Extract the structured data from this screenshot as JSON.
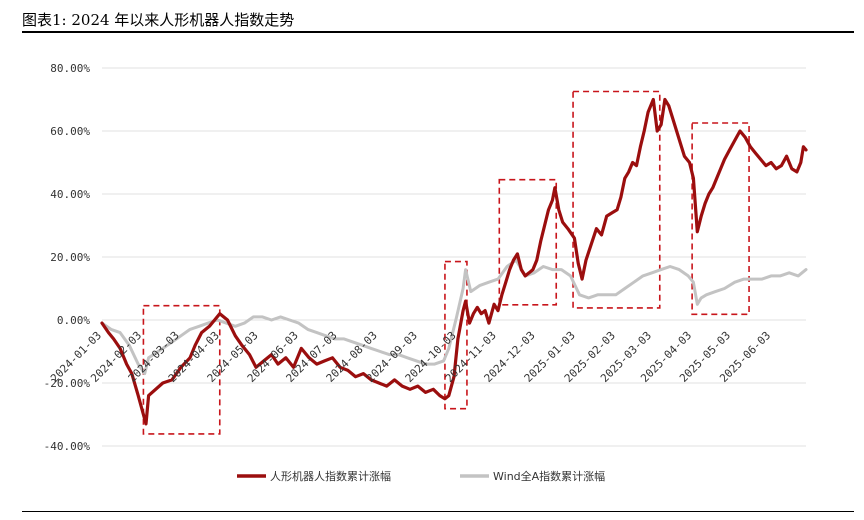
{
  "title": "图表1: 2024 年以来人形机器人指数走势",
  "colors": {
    "series1": "#9b0e0e",
    "series2": "#c3c3c3",
    "highlight_box": "#c8151b",
    "grid": "#e2e2e2"
  },
  "chart_data": {
    "type": "line",
    "xlabel": "",
    "ylabel": "",
    "ylim": [
      -40,
      80
    ],
    "grid": true,
    "legend_position": "bottom-center",
    "y_ticks": [
      80,
      60,
      40,
      20,
      0,
      -20,
      -40
    ],
    "y_tick_labels": [
      "80.00%",
      "60.00%",
      "40.00%",
      "20.00%",
      "0.00%",
      "-20.00%",
      "-40.00%"
    ],
    "x_ticks": [
      "2024-01-03",
      "2024-02-03",
      "2024-03-03",
      "2024-04-03",
      "2024-05-03",
      "2024-06-03",
      "2024-07-03",
      "2024-08-03",
      "2024-09-03",
      "2024-10-03",
      "2024-11-03",
      "2024-12-03",
      "2025-01-03",
      "2025-02-03",
      "2025-03-03",
      "2025-04-03",
      "2025-05-03",
      "2025-06-03"
    ],
    "series": [
      {
        "name": "人形机器人指数累计涨幅",
        "points": [
          [
            "2024-01-03",
            -1
          ],
          [
            "2024-01-08",
            -4
          ],
          [
            "2024-01-12",
            -6
          ],
          [
            "2024-01-17",
            -9
          ],
          [
            "2024-01-22",
            -14
          ],
          [
            "2024-01-26",
            -17
          ],
          [
            "2024-01-31",
            -24
          ],
          [
            "2024-02-04",
            -30
          ],
          [
            "2024-02-06",
            -33
          ],
          [
            "2024-02-08",
            -24
          ],
          [
            "2024-02-19",
            -20
          ],
          [
            "2024-02-26",
            -19
          ],
          [
            "2024-03-04",
            -15
          ],
          [
            "2024-03-11",
            -12
          ],
          [
            "2024-03-15",
            -8
          ],
          [
            "2024-03-20",
            -4
          ],
          [
            "2024-03-26",
            -2
          ],
          [
            "2024-03-30",
            0
          ],
          [
            "2024-04-03",
            2
          ],
          [
            "2024-04-09",
            0
          ],
          [
            "2024-04-15",
            -5
          ],
          [
            "2024-04-20",
            -8
          ],
          [
            "2024-04-26",
            -11
          ],
          [
            "2024-05-01",
            -15
          ],
          [
            "2024-05-07",
            -13
          ],
          [
            "2024-05-13",
            -11
          ],
          [
            "2024-05-18",
            -14
          ],
          [
            "2024-05-24",
            -12
          ],
          [
            "2024-05-30",
            -15
          ],
          [
            "2024-06-05",
            -9
          ],
          [
            "2024-06-11",
            -12
          ],
          [
            "2024-06-17",
            -14
          ],
          [
            "2024-06-23",
            -13
          ],
          [
            "2024-06-29",
            -12
          ],
          [
            "2024-07-05",
            -15
          ],
          [
            "2024-07-11",
            -16
          ],
          [
            "2024-07-17",
            -18
          ],
          [
            "2024-07-23",
            -17
          ],
          [
            "2024-07-29",
            -19
          ],
          [
            "2024-08-04",
            -20
          ],
          [
            "2024-08-10",
            -21
          ],
          [
            "2024-08-16",
            -19
          ],
          [
            "2024-08-22",
            -21
          ],
          [
            "2024-08-28",
            -22
          ],
          [
            "2024-09-03",
            -21
          ],
          [
            "2024-09-09",
            -23
          ],
          [
            "2024-09-15",
            -22
          ],
          [
            "2024-09-20",
            -24
          ],
          [
            "2024-09-24",
            -25
          ],
          [
            "2024-09-27",
            -24
          ],
          [
            "2024-10-01",
            -18
          ],
          [
            "2024-10-04",
            -6
          ],
          [
            "2024-10-08",
            3
          ],
          [
            "2024-10-10",
            6
          ],
          [
            "2024-10-13",
            -1
          ],
          [
            "2024-10-16",
            2
          ],
          [
            "2024-10-19",
            4
          ],
          [
            "2024-10-22",
            2
          ],
          [
            "2024-10-25",
            3
          ],
          [
            "2024-10-28",
            -1
          ],
          [
            "2024-11-01",
            5
          ],
          [
            "2024-11-04",
            3
          ],
          [
            "2024-11-07",
            8
          ],
          [
            "2024-11-10",
            12
          ],
          [
            "2024-11-13",
            16
          ],
          [
            "2024-11-16",
            19
          ],
          [
            "2024-11-19",
            21
          ],
          [
            "2024-11-22",
            16
          ],
          [
            "2024-11-25",
            14
          ],
          [
            "2024-11-28",
            15
          ],
          [
            "2024-12-01",
            16
          ],
          [
            "2024-12-04",
            19
          ],
          [
            "2024-12-07",
            25
          ],
          [
            "2024-12-10",
            30
          ],
          [
            "2024-12-13",
            35
          ],
          [
            "2024-12-16",
            38
          ],
          [
            "2024-12-18",
            42
          ],
          [
            "2024-12-21",
            35
          ],
          [
            "2024-12-24",
            31
          ],
          [
            "2024-12-28",
            29
          ],
          [
            "2025-01-02",
            26
          ],
          [
            "2025-01-05",
            18
          ],
          [
            "2025-01-08",
            13
          ],
          [
            "2025-01-11",
            19
          ],
          [
            "2025-01-15",
            24
          ],
          [
            "2025-01-19",
            29
          ],
          [
            "2025-01-23",
            27
          ],
          [
            "2025-01-27",
            33
          ],
          [
            "2025-01-31",
            34
          ],
          [
            "2025-02-04",
            35
          ],
          [
            "2025-02-07",
            39
          ],
          [
            "2025-02-10",
            45
          ],
          [
            "2025-02-13",
            47
          ],
          [
            "2025-02-16",
            50
          ],
          [
            "2025-02-19",
            49
          ],
          [
            "2025-02-22",
            55
          ],
          [
            "2025-02-25",
            60
          ],
          [
            "2025-02-28",
            66
          ],
          [
            "2025-03-04",
            70
          ],
          [
            "2025-03-07",
            60
          ],
          [
            "2025-03-10",
            62
          ],
          [
            "2025-03-13",
            70
          ],
          [
            "2025-03-16",
            68
          ],
          [
            "2025-03-19",
            64
          ],
          [
            "2025-03-22",
            60
          ],
          [
            "2025-03-25",
            56
          ],
          [
            "2025-03-28",
            52
          ],
          [
            "2025-04-01",
            50
          ],
          [
            "2025-04-04",
            45
          ],
          [
            "2025-04-07",
            28
          ],
          [
            "2025-04-10",
            33
          ],
          [
            "2025-04-13",
            37
          ],
          [
            "2025-04-16",
            40
          ],
          [
            "2025-04-19",
            42
          ],
          [
            "2025-04-22",
            45
          ],
          [
            "2025-04-25",
            48
          ],
          [
            "2025-04-28",
            51
          ],
          [
            "2025-05-02",
            54
          ],
          [
            "2025-05-06",
            57
          ],
          [
            "2025-05-10",
            60
          ],
          [
            "2025-05-14",
            58
          ],
          [
            "2025-05-18",
            55
          ],
          [
            "2025-05-22",
            53
          ],
          [
            "2025-05-26",
            51
          ],
          [
            "2025-05-30",
            49
          ],
          [
            "2025-06-03",
            50
          ],
          [
            "2025-06-07",
            48
          ],
          [
            "2025-06-11",
            49
          ],
          [
            "2025-06-15",
            52
          ],
          [
            "2025-06-19",
            48
          ],
          [
            "2025-06-23",
            47
          ],
          [
            "2025-06-26",
            50
          ],
          [
            "2025-06-28",
            55
          ],
          [
            "2025-06-30",
            54
          ]
        ]
      },
      {
        "name": "Wind全A指数累计涨幅",
        "points": [
          [
            "2024-01-03",
            -1
          ],
          [
            "2024-01-10",
            -3
          ],
          [
            "2024-01-17",
            -4
          ],
          [
            "2024-01-24",
            -8
          ],
          [
            "2024-01-31",
            -14
          ],
          [
            "2024-02-05",
            -17
          ],
          [
            "2024-02-08",
            -12
          ],
          [
            "2024-02-19",
            -9
          ],
          [
            "2024-02-26",
            -7
          ],
          [
            "2024-03-04",
            -5
          ],
          [
            "2024-03-11",
            -3
          ],
          [
            "2024-03-18",
            -2
          ],
          [
            "2024-03-25",
            -1
          ],
          [
            "2024-04-01",
            0
          ],
          [
            "2024-04-08",
            -1
          ],
          [
            "2024-04-15",
            -2
          ],
          [
            "2024-04-22",
            -1
          ],
          [
            "2024-04-29",
            1
          ],
          [
            "2024-05-06",
            1
          ],
          [
            "2024-05-13",
            0
          ],
          [
            "2024-05-20",
            1
          ],
          [
            "2024-05-27",
            0
          ],
          [
            "2024-06-03",
            -1
          ],
          [
            "2024-06-10",
            -3
          ],
          [
            "2024-06-17",
            -4
          ],
          [
            "2024-06-24",
            -5
          ],
          [
            "2024-07-01",
            -6
          ],
          [
            "2024-07-08",
            -6
          ],
          [
            "2024-07-15",
            -7
          ],
          [
            "2024-07-22",
            -8
          ],
          [
            "2024-07-29",
            -9
          ],
          [
            "2024-08-05",
            -10
          ],
          [
            "2024-08-12",
            -11
          ],
          [
            "2024-08-19",
            -11
          ],
          [
            "2024-08-26",
            -12
          ],
          [
            "2024-09-02",
            -13
          ],
          [
            "2024-09-09",
            -14
          ],
          [
            "2024-09-16",
            -14
          ],
          [
            "2024-09-23",
            -13
          ],
          [
            "2024-09-27",
            -9
          ],
          [
            "2024-10-03",
            1
          ],
          [
            "2024-10-08",
            10
          ],
          [
            "2024-10-10",
            16
          ],
          [
            "2024-10-14",
            9
          ],
          [
            "2024-10-21",
            11
          ],
          [
            "2024-10-28",
            12
          ],
          [
            "2024-11-04",
            13
          ],
          [
            "2024-11-11",
            17
          ],
          [
            "2024-11-18",
            19
          ],
          [
            "2024-11-25",
            14
          ],
          [
            "2024-12-02",
            15
          ],
          [
            "2024-12-09",
            17
          ],
          [
            "2024-12-16",
            16
          ],
          [
            "2024-12-23",
            16
          ],
          [
            "2024-12-30",
            14
          ],
          [
            "2025-01-06",
            8
          ],
          [
            "2025-01-13",
            7
          ],
          [
            "2025-01-20",
            8
          ],
          [
            "2025-01-27",
            8
          ],
          [
            "2025-02-03",
            8
          ],
          [
            "2025-02-10",
            10
          ],
          [
            "2025-02-17",
            12
          ],
          [
            "2025-02-24",
            14
          ],
          [
            "2025-03-03",
            15
          ],
          [
            "2025-03-10",
            16
          ],
          [
            "2025-03-17",
            17
          ],
          [
            "2025-03-24",
            16
          ],
          [
            "2025-03-31",
            14
          ],
          [
            "2025-04-04",
            12
          ],
          [
            "2025-04-07",
            5
          ],
          [
            "2025-04-10",
            7
          ],
          [
            "2025-04-14",
            8
          ],
          [
            "2025-04-21",
            9
          ],
          [
            "2025-04-28",
            10
          ],
          [
            "2025-05-06",
            12
          ],
          [
            "2025-05-13",
            13
          ],
          [
            "2025-05-20",
            13
          ],
          [
            "2025-05-27",
            13
          ],
          [
            "2025-06-03",
            14
          ],
          [
            "2025-06-10",
            14
          ],
          [
            "2025-06-17",
            15
          ],
          [
            "2025-06-24",
            14
          ],
          [
            "2025-06-30",
            16
          ]
        ]
      }
    ],
    "highlight_periods": [
      [
        "2024-02-04",
        "2024-04-03"
      ],
      [
        "2024-09-24",
        "2024-10-11"
      ],
      [
        "2024-11-05",
        "2024-12-19"
      ],
      [
        "2025-01-01",
        "2025-03-09"
      ],
      [
        "2025-04-03",
        "2025-05-17"
      ]
    ]
  }
}
